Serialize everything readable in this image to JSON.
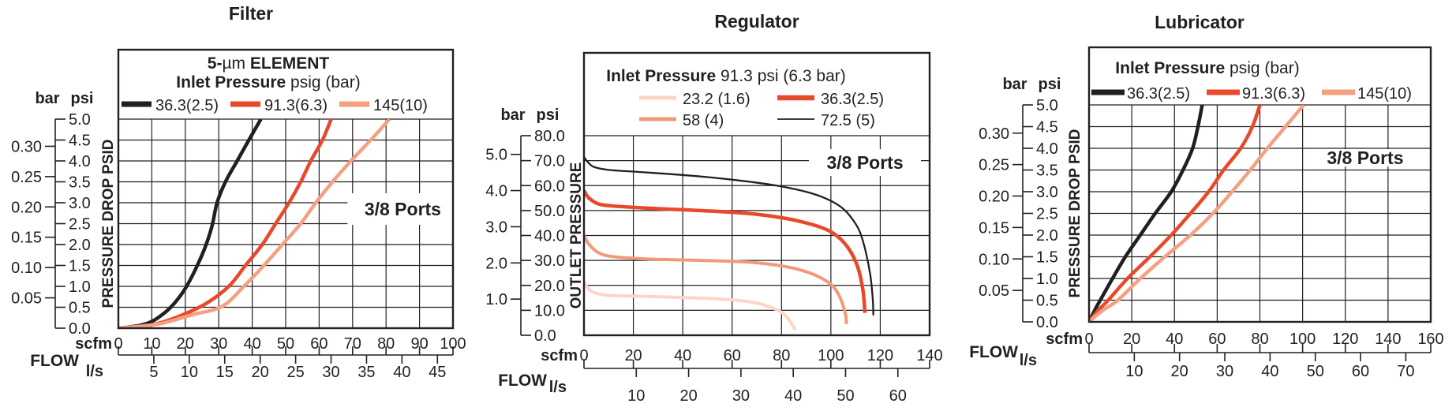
{
  "chart_data": [
    {
      "type": "line",
      "title": "Filter",
      "annotation": "3/8 Ports",
      "legend": {
        "lines": [
          [
            {
              "t": "5-",
              "b": true
            },
            {
              "t": "µm",
              "b": false
            },
            {
              "t": " ELEMENT",
              "b": true
            }
          ],
          [
            {
              "t": "Inlet Pressure",
              "b": true
            },
            {
              "t": " psig (bar)",
              "b": false
            }
          ]
        ]
      },
      "y_axis": {
        "unit_left": "bar",
        "unit_right": "psi",
        "title": "PRESSURE DROP PSID",
        "psi": {
          "min": 0,
          "max": 5,
          "values": [
            0,
            0.5,
            1,
            1.5,
            2,
            2.5,
            3,
            3.5,
            4,
            4.5,
            5
          ],
          "labels": [
            "0.0",
            "0.5",
            "1.0",
            "1.5",
            "2.0",
            "2.5",
            "3.0",
            "3.5",
            "4.0",
            "4.5",
            "5.0"
          ]
        },
        "bar": {
          "values": [
            0.05,
            0.1,
            0.15,
            0.2,
            0.25,
            0.3
          ],
          "labels": [
            "0.05",
            "0.10",
            "0.15",
            "0.20",
            "0.25",
            "0.30"
          ],
          "psi_per_bar": 14.5
        }
      },
      "x_axis": {
        "unit_top": "scfm",
        "unit_bottom": "l/s",
        "title": "FLOW",
        "scfm": {
          "min": 0,
          "max": 100,
          "values": [
            0,
            10,
            20,
            30,
            40,
            50,
            60,
            70,
            80,
            90,
            100
          ],
          "labels": [
            "0",
            "10",
            "20",
            "30",
            "40",
            "50",
            "60",
            "70",
            "80",
            "90",
            "100"
          ]
        },
        "lps": {
          "values": [
            5,
            10,
            15,
            20,
            25,
            30,
            35,
            40,
            45
          ],
          "labels": [
            "5",
            "10",
            "15",
            "20",
            "25",
            "30",
            "35",
            "40",
            "45"
          ],
          "scfm_per_lps": 2.1189
        }
      },
      "series": [
        {
          "label": "36.3(2.5)",
          "color": "#231f20",
          "width": 4.5,
          "lw": 7,
          "points": [
            [
              0,
              0
            ],
            [
              6,
              0.06
            ],
            [
              10,
              0.16
            ],
            [
              14,
              0.38
            ],
            [
              17,
              0.62
            ],
            [
              20,
              0.95
            ],
            [
              23,
              1.4
            ],
            [
              26,
              1.95
            ],
            [
              28,
              2.45
            ],
            [
              29.5,
              3.0
            ],
            [
              32,
              3.5
            ],
            [
              35.5,
              4.0
            ],
            [
              39,
              4.5
            ],
            [
              42.6,
              5.0
            ]
          ]
        },
        {
          "label": "91.3(6.3)",
          "color": "#e8492a",
          "width": 4.5,
          "lw": 7,
          "points": [
            [
              0,
              0
            ],
            [
              10,
              0.08
            ],
            [
              18,
              0.28
            ],
            [
              26,
              0.58
            ],
            [
              33,
              1.0
            ],
            [
              38,
              1.5
            ],
            [
              43,
              2.0
            ],
            [
              47,
              2.5
            ],
            [
              51,
              3.0
            ],
            [
              54.5,
              3.5
            ],
            [
              57.5,
              4.0
            ],
            [
              61,
              4.5
            ],
            [
              63.6,
              5.0
            ]
          ]
        },
        {
          "label": "145(10)",
          "color": "#f4a083",
          "width": 4.5,
          "lw": 7,
          "points": [
            [
              0,
              0
            ],
            [
              12,
              0.1
            ],
            [
              22,
              0.32
            ],
            [
              31,
              0.52
            ],
            [
              37.5,
              1.0
            ],
            [
              43.5,
              1.5
            ],
            [
              49,
              2.0
            ],
            [
              54.5,
              2.5
            ],
            [
              59,
              3.0
            ],
            [
              64,
              3.5
            ],
            [
              69.5,
              4.0
            ],
            [
              76,
              4.55
            ],
            [
              81,
              5.0
            ]
          ]
        }
      ]
    },
    {
      "type": "line",
      "title": "Regulator",
      "annotation": "3/8 Ports",
      "legend": {
        "lines": [
          [
            {
              "t": "Inlet Pressure",
              "b": true
            },
            {
              "t": " 91.3 psi (6.3 bar)",
              "b": false
            }
          ]
        ]
      },
      "y_axis": {
        "unit_left": "bar",
        "unit_right": "psi",
        "title": "OUTLET PRESSURE",
        "psi": {
          "min": 0,
          "max": 80,
          "values": [
            0,
            10,
            20,
            30,
            40,
            50,
            60,
            70,
            80
          ],
          "labels": [
            "0.0",
            "10.0",
            "20.0",
            "30.0",
            "40.0",
            "50.0",
            "60.0",
            "70.0",
            "80.0"
          ]
        },
        "bar": {
          "values": [
            1,
            2,
            3,
            4,
            5
          ],
          "labels": [
            "1.0",
            "2.0",
            "3.0",
            "4.0",
            "5.0"
          ],
          "psi_per_bar": 14.5
        }
      },
      "x_axis": {
        "unit_top": "scfm",
        "unit_bottom": "l/s",
        "title": "FLOW",
        "scfm": {
          "min": 0,
          "max": 140,
          "values": [
            0,
            20,
            40,
            60,
            80,
            100,
            120,
            140
          ],
          "labels": [
            "0",
            "20",
            "40",
            "60",
            "80",
            "100",
            "120",
            "140"
          ]
        },
        "lps": {
          "values": [
            10,
            20,
            30,
            40,
            50,
            60
          ],
          "labels": [
            "10",
            "20",
            "30",
            "40",
            "50",
            "60"
          ],
          "scfm_per_lps": 2.1189
        }
      },
      "series": [
        {
          "label": "23.2 (1.6)",
          "color": "#fbd6c6",
          "width": 4,
          "lw": 5,
          "points": [
            [
              0,
              21.5
            ],
            [
              2,
              18.5
            ],
            [
              5,
              16.8
            ],
            [
              10,
              16
            ],
            [
              20,
              15.7
            ],
            [
              35,
              15.3
            ],
            [
              50,
              14.8
            ],
            [
              60,
              14.2
            ],
            [
              68,
              13.3
            ],
            [
              74,
              11.8
            ],
            [
              79,
              9.8
            ],
            [
              82,
              7.5
            ],
            [
              84.5,
              4
            ],
            [
              85.5,
              2.2
            ]
          ]
        },
        {
          "label": "36.3(2.5)",
          "color": "#e8492a",
          "width": 4.5,
          "lw": 6.5,
          "points": [
            [
              0,
              58
            ],
            [
              2,
              55
            ],
            [
              6,
              52.6
            ],
            [
              12,
              51.8
            ],
            [
              25,
              51
            ],
            [
              40,
              50.3
            ],
            [
              55,
              49.6
            ],
            [
              70,
              48.5
            ],
            [
              82,
              46.8
            ],
            [
              92,
              44.5
            ],
            [
              99,
              42
            ],
            [
              104,
              38.5
            ],
            [
              108,
              33.5
            ],
            [
              111,
              27
            ],
            [
              113,
              18
            ],
            [
              113.8,
              9
            ]
          ]
        },
        {
          "label": "58 (4)",
          "color": "#f2997c",
          "width": 4,
          "lw": 5,
          "points": [
            [
              0,
              40
            ],
            [
              2,
              36.5
            ],
            [
              6,
              33
            ],
            [
              12,
              31.5
            ],
            [
              25,
              30.6
            ],
            [
              40,
              30.2
            ],
            [
              55,
              29.8
            ],
            [
              68,
              29.2
            ],
            [
              80,
              27.8
            ],
            [
              89,
              25.8
            ],
            [
              96,
              23
            ],
            [
              101,
              19.5
            ],
            [
              104,
              14.5
            ],
            [
              106,
              8
            ],
            [
              106.3,
              4.5
            ]
          ]
        },
        {
          "label": "72.5 (5)",
          "color": "#231f20",
          "width": 2.3,
          "lw": 1.8,
          "points": [
            [
              0,
              71.5
            ],
            [
              1.5,
              69.5
            ],
            [
              4,
              67.5
            ],
            [
              10,
              66.3
            ],
            [
              20,
              65.6
            ],
            [
              35,
              64.6
            ],
            [
              50,
              63.4
            ],
            [
              65,
              61.8
            ],
            [
              78,
              60
            ],
            [
              90,
              57.5
            ],
            [
              98,
              54.8
            ],
            [
              104,
              51.5
            ],
            [
              108,
              47.5
            ],
            [
              111.5,
              42
            ],
            [
              114,
              34
            ],
            [
              116,
              24
            ],
            [
              117,
              14
            ],
            [
              117.2,
              8
            ]
          ]
        }
      ]
    },
    {
      "type": "line",
      "title": "Lubricator",
      "annotation": "3/8 Ports",
      "legend": {
        "lines": [
          [
            {
              "t": "Inlet Pressure",
              "b": true
            },
            {
              "t": " psig (bar)",
              "b": false
            }
          ]
        ]
      },
      "y_axis": {
        "unit_left": "bar",
        "unit_right": "psi",
        "title": "PRESSURE DROP PSID",
        "psi": {
          "min": 0,
          "max": 5,
          "values": [
            0,
            0.5,
            1,
            1.5,
            2,
            2.5,
            3,
            3.5,
            4,
            4.5,
            5
          ],
          "labels": [
            "0.0",
            "0.5",
            "1.0",
            "1.5",
            "2.0",
            "2.5",
            "3.0",
            "3.5",
            "4.0",
            "4.5",
            "5.0"
          ]
        },
        "bar": {
          "values": [
            0.05,
            0.1,
            0.15,
            0.2,
            0.25,
            0.3
          ],
          "labels": [
            "0.05",
            "0.10",
            "0.15",
            "0.20",
            "0.25",
            "0.30"
          ],
          "psi_per_bar": 14.5
        }
      },
      "x_axis": {
        "unit_top": "scfm",
        "unit_bottom": "l/s",
        "title": "FLOW",
        "scfm": {
          "min": 0,
          "max": 160,
          "values": [
            0,
            20,
            40,
            60,
            80,
            100,
            120,
            140,
            160
          ],
          "labels": [
            "0",
            "20",
            "40",
            "60",
            "80",
            "100",
            "120",
            "140",
            "160"
          ]
        },
        "lps": {
          "values": [
            10,
            20,
            30,
            40,
            50,
            60,
            70
          ],
          "labels": [
            "10",
            "20",
            "30",
            "40",
            "50",
            "60",
            "70"
          ],
          "scfm_per_lps": 2.1189
        }
      },
      "series": [
        {
          "label": "36.3(2.5)",
          "color": "#231f20",
          "width": 4.5,
          "lw": 7,
          "points": [
            [
              0,
              0
            ],
            [
              3,
              0.3
            ],
            [
              5.5,
              0.52
            ],
            [
              11,
              1.0
            ],
            [
              17,
              1.5
            ],
            [
              24,
              2.0
            ],
            [
              31,
              2.5
            ],
            [
              38.5,
              3.0
            ],
            [
              44,
              3.5
            ],
            [
              48.5,
              4.0
            ],
            [
              51,
              4.5
            ],
            [
              53,
              5.0
            ]
          ]
        },
        {
          "label": "91.3(6.3)",
          "color": "#e8492a",
          "width": 4.5,
          "lw": 7,
          "points": [
            [
              0,
              0
            ],
            [
              4,
              0.25
            ],
            [
              9,
              0.5
            ],
            [
              18,
              1.0
            ],
            [
              28.5,
              1.5
            ],
            [
              38.5,
              2.0
            ],
            [
              47.5,
              2.5
            ],
            [
              56,
              3.0
            ],
            [
              63,
              3.5
            ],
            [
              71,
              4.0
            ],
            [
              76.5,
              4.5
            ],
            [
              80,
              5.0
            ]
          ]
        },
        {
          "label": "145(10)",
          "color": "#f4a083",
          "width": 4.5,
          "lw": 7,
          "points": [
            [
              0,
              0
            ],
            [
              6,
              0.25
            ],
            [
              13.5,
              0.5
            ],
            [
              24,
              1.0
            ],
            [
              35.5,
              1.5
            ],
            [
              47.5,
              2.0
            ],
            [
              58,
              2.5
            ],
            [
              67,
              3.0
            ],
            [
              75.5,
              3.5
            ],
            [
              83.5,
              4.0
            ],
            [
              92,
              4.5
            ],
            [
              100.5,
              5.0
            ]
          ]
        }
      ]
    }
  ]
}
